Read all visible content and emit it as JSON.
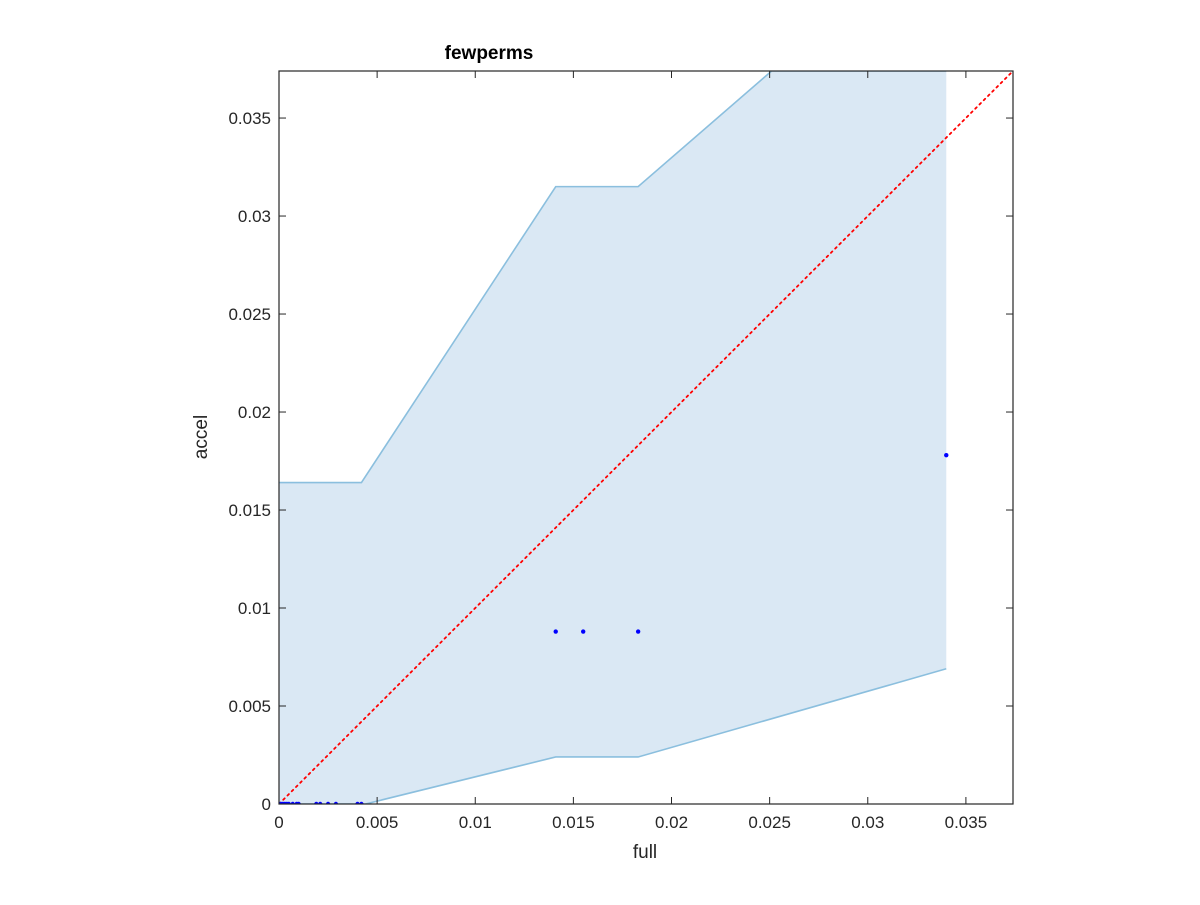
{
  "chart_data": {
    "type": "scatter",
    "title": "fewperms",
    "xlabel": "full",
    "ylabel": "accel",
    "xlim": [
      0,
      0.0374
    ],
    "ylim": [
      0,
      0.0374
    ],
    "grid": false,
    "legend": "none",
    "x_ticks": [
      {
        "value": 0,
        "label": "0"
      },
      {
        "value": 0.005,
        "label": "0.005"
      },
      {
        "value": 0.01,
        "label": "0.01"
      },
      {
        "value": 0.015,
        "label": "0.015"
      },
      {
        "value": 0.02,
        "label": "0.02"
      },
      {
        "value": 0.025,
        "label": "0.025"
      },
      {
        "value": 0.03,
        "label": "0.03"
      },
      {
        "value": 0.035,
        "label": "0.035"
      }
    ],
    "y_ticks": [
      {
        "value": 0,
        "label": "0"
      },
      {
        "value": 0.005,
        "label": "0.005"
      },
      {
        "value": 0.01,
        "label": "0.01"
      },
      {
        "value": 0.015,
        "label": "0.015"
      },
      {
        "value": 0.02,
        "label": "0.02"
      },
      {
        "value": 0.025,
        "label": "0.025"
      },
      {
        "value": 0.03,
        "label": "0.03"
      },
      {
        "value": 0.035,
        "label": "0.035"
      }
    ],
    "band": {
      "upper": [
        [
          0,
          0.0164
        ],
        [
          0.0042,
          0.0164
        ],
        [
          0.0141,
          0.0315
        ],
        [
          0.0183,
          0.0315
        ],
        [
          0.0251,
          0.0374
        ],
        [
          0.034,
          0.0374
        ]
      ],
      "lower": [
        [
          0,
          0
        ],
        [
          0.0044,
          0
        ],
        [
          0.0141,
          0.0024
        ],
        [
          0.0183,
          0.0024
        ],
        [
          0.034,
          0.0069
        ]
      ],
      "fill_color": "#dae8f4",
      "edge_color": "#8bbfde"
    },
    "reference_line": {
      "from": [
        0,
        0
      ],
      "to": [
        0.0374,
        0.0374
      ],
      "color": "#ff0000",
      "style": "dotted"
    },
    "points": {
      "color": "#0000ff",
      "x": [
        0,
        0.0001,
        0.0002,
        0.0003,
        0.0004,
        0.0005,
        0.0007,
        0.0009,
        0.001,
        0.0019,
        0.0021,
        0.0025,
        0.0029,
        0.004,
        0.0042,
        0.0141,
        0.0155,
        0.0183,
        0.034
      ],
      "y": [
        0,
        0,
        0,
        0,
        0,
        0,
        0,
        0,
        0,
        0,
        0,
        0,
        0,
        0,
        0,
        0.0088,
        0.0088,
        0.0088,
        0.0178
      ]
    }
  }
}
